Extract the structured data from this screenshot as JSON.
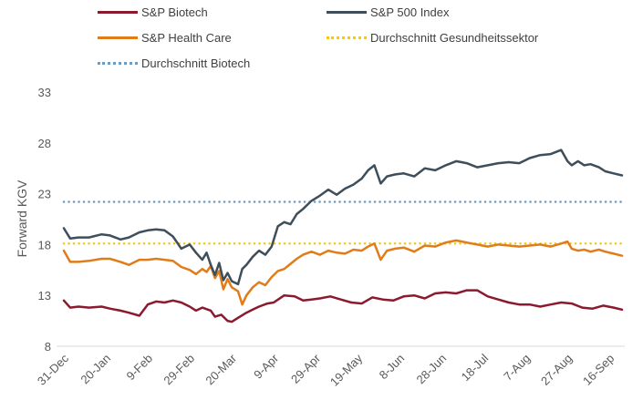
{
  "chart_data": {
    "type": "line",
    "title": "",
    "xlabel": "",
    "ylabel": "Forward KGV",
    "ylim": [
      8,
      33
    ],
    "yticks": [
      8,
      13,
      18,
      23,
      28,
      33
    ],
    "x_tick_labels": [
      "31-Dec",
      "20-Jan",
      "9-Feb",
      "29-Feb",
      "20-Mar",
      "9-Apr",
      "29-Apr",
      "19-May",
      "8-Jun",
      "28-Jun",
      "18-Jul",
      "7-Aug",
      "27-Aug",
      "16-Sep"
    ],
    "x_range_days": [
      0,
      266
    ],
    "grid": false,
    "legend_position": "top",
    "series": [
      {
        "name": "S&P Biotech",
        "color": "#8B1A2E",
        "style": "solid",
        "x_days": [
          0,
          3,
          7,
          12,
          18,
          22,
          27,
          31,
          36,
          40,
          44,
          48,
          52,
          56,
          60,
          63,
          66,
          70,
          72,
          75,
          78,
          80,
          83,
          87,
          90,
          93,
          97,
          100,
          105,
          110,
          114,
          118,
          122,
          127,
          132,
          137,
          142,
          147,
          152,
          157,
          162,
          167,
          172,
          177,
          182,
          187,
          192,
          197,
          202,
          207,
          212,
          217,
          222,
          227,
          232,
          237,
          242,
          247,
          252,
          257,
          262,
          266
        ],
        "values": [
          12.5,
          11.8,
          11.9,
          11.8,
          11.9,
          11.7,
          11.5,
          11.3,
          11.0,
          12.1,
          12.4,
          12.3,
          12.5,
          12.3,
          11.9,
          11.5,
          11.8,
          11.5,
          10.9,
          11.1,
          10.5,
          10.4,
          10.8,
          11.3,
          11.6,
          11.9,
          12.2,
          12.3,
          13.0,
          12.9,
          12.5,
          12.6,
          12.7,
          12.9,
          12.6,
          12.3,
          12.2,
          12.8,
          12.6,
          12.5,
          12.9,
          13.0,
          12.7,
          13.2,
          13.3,
          13.2,
          13.5,
          13.5,
          12.9,
          12.6,
          12.3,
          12.1,
          12.1,
          11.9,
          12.1,
          12.3,
          12.2,
          11.8,
          11.7,
          12.0,
          11.8,
          11.6
        ]
      },
      {
        "name": "S&P 500 Index",
        "color": "#3E4E5A",
        "style": "solid",
        "x_days": [
          0,
          3,
          7,
          12,
          18,
          22,
          27,
          31,
          36,
          40,
          44,
          48,
          52,
          56,
          60,
          63,
          66,
          68,
          70,
          72,
          74,
          76,
          78,
          80,
          83,
          85,
          87,
          90,
          93,
          96,
          99,
          102,
          105,
          108,
          111,
          114,
          118,
          122,
          126,
          130,
          134,
          138,
          142,
          145,
          148,
          151,
          154,
          158,
          162,
          167,
          172,
          177,
          182,
          187,
          192,
          197,
          202,
          207,
          212,
          217,
          222,
          227,
          232,
          237,
          240,
          242,
          245,
          248,
          251,
          255,
          258,
          262,
          266
        ],
        "values": [
          19.6,
          18.6,
          18.7,
          18.7,
          19.0,
          18.9,
          18.5,
          18.7,
          19.2,
          19.4,
          19.5,
          19.4,
          18.8,
          17.6,
          18.0,
          17.2,
          16.5,
          17.2,
          16.0,
          15.0,
          16.2,
          14.5,
          15.2,
          14.4,
          14.1,
          15.6,
          16.0,
          16.8,
          17.4,
          17.0,
          17.8,
          19.8,
          20.2,
          20.0,
          21.0,
          21.5,
          22.3,
          22.8,
          23.4,
          22.9,
          23.5,
          23.9,
          24.5,
          25.3,
          25.8,
          24.0,
          24.7,
          24.9,
          25.0,
          24.7,
          25.5,
          25.3,
          25.8,
          26.2,
          26.0,
          25.6,
          25.8,
          26.0,
          26.1,
          26.0,
          26.5,
          26.8,
          26.9,
          27.3,
          26.2,
          25.8,
          26.2,
          25.8,
          25.9,
          25.6,
          25.2,
          25.0,
          24.8
        ]
      },
      {
        "name": "S&P Health Care",
        "color": "#E07D1A",
        "style": "solid",
        "x_days": [
          0,
          3,
          7,
          12,
          18,
          22,
          27,
          31,
          36,
          40,
          44,
          48,
          52,
          56,
          60,
          63,
          66,
          68,
          70,
          72,
          74,
          76,
          78,
          80,
          83,
          85,
          87,
          90,
          93,
          96,
          99,
          102,
          105,
          108,
          111,
          114,
          118,
          122,
          126,
          130,
          134,
          138,
          142,
          145,
          148,
          151,
          154,
          158,
          162,
          167,
          172,
          177,
          182,
          187,
          192,
          197,
          202,
          207,
          212,
          217,
          222,
          227,
          232,
          237,
          240,
          242,
          245,
          248,
          251,
          255,
          258,
          262,
          266
        ],
        "values": [
          17.4,
          16.3,
          16.3,
          16.4,
          16.6,
          16.6,
          16.3,
          16.0,
          16.5,
          16.5,
          16.6,
          16.5,
          16.4,
          15.8,
          15.5,
          15.1,
          15.6,
          15.3,
          15.9,
          14.7,
          15.4,
          13.6,
          14.6,
          13.8,
          13.4,
          12.1,
          13.0,
          13.8,
          14.3,
          14.0,
          14.8,
          15.4,
          15.6,
          16.1,
          16.6,
          17.0,
          17.3,
          17.0,
          17.4,
          17.2,
          17.1,
          17.5,
          17.4,
          17.8,
          18.1,
          16.5,
          17.4,
          17.6,
          17.7,
          17.3,
          17.9,
          17.8,
          18.2,
          18.4,
          18.2,
          18.0,
          17.8,
          18.0,
          17.9,
          17.8,
          17.9,
          18.0,
          17.8,
          18.1,
          18.3,
          17.6,
          17.4,
          17.5,
          17.3,
          17.5,
          17.3,
          17.1,
          16.9
        ]
      },
      {
        "name": "Durchschnitt Gesundheitssektor",
        "color": "#F2C81B",
        "style": "dotted",
        "x_days": [
          0,
          266
        ],
        "values": [
          18.1,
          18.1
        ]
      },
      {
        "name": "Durchschnitt Biotech",
        "color": "#6E9BC0",
        "style": "dotted",
        "x_days": [
          0,
          266
        ],
        "values": [
          22.2,
          22.2
        ]
      }
    ]
  }
}
